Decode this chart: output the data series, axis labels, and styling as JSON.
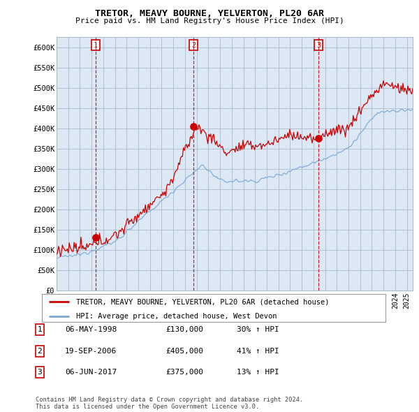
{
  "title": "TRETOR, MEAVY BOURNE, YELVERTON, PL20 6AR",
  "subtitle": "Price paid vs. HM Land Registry's House Price Index (HPI)",
  "ylabel_ticks": [
    "£0",
    "£50K",
    "£100K",
    "£150K",
    "£200K",
    "£250K",
    "£300K",
    "£350K",
    "£400K",
    "£450K",
    "£500K",
    "£550K",
    "£600K"
  ],
  "ylim": [
    0,
    620000
  ],
  "xlim_start": 1995.0,
  "xlim_end": 2025.5,
  "sale_color": "#cc0000",
  "hpi_color": "#7ba7d4",
  "chart_bg": "#dce9f5",
  "sale_label": "TRETOR, MEAVY BOURNE, YELVERTON, PL20 6AR (detached house)",
  "hpi_label": "HPI: Average price, detached house, West Devon",
  "transactions": [
    {
      "num": 1,
      "date_label": "06-MAY-1998",
      "price": "£130,000",
      "change": "30% ↑ HPI",
      "year": 1998.35,
      "price_val": 130000
    },
    {
      "num": 2,
      "date_label": "19-SEP-2006",
      "price": "£405,000",
      "change": "41% ↑ HPI",
      "year": 2006.72,
      "price_val": 405000
    },
    {
      "num": 3,
      "date_label": "06-JUN-2017",
      "price": "£375,000",
      "change": "13% ↑ HPI",
      "year": 2017.44,
      "price_val": 375000
    }
  ],
  "footer": "Contains HM Land Registry data © Crown copyright and database right 2024.\nThis data is licensed under the Open Government Licence v3.0.",
  "bg_color": "#ffffff",
  "grid_color": "#aabbcc",
  "vline_color": "#cc0000"
}
